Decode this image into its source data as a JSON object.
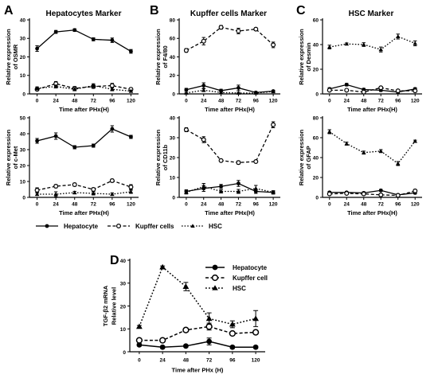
{
  "figure": {
    "legend_top": [
      "Hepatocyte",
      "Kupffer cells",
      "HSC"
    ],
    "legend_d": [
      "Hepatocyte",
      "Kupffer cell",
      "HSC"
    ]
  },
  "chart_data": [
    {
      "id": "A_top",
      "letter": "A",
      "title": "Hepatocytes Marker",
      "type": "line",
      "x": [
        0,
        24,
        48,
        72,
        96,
        120
      ],
      "xlabel": "Time after PHx(H)",
      "ylabel": [
        "Relative expression",
        "of OSMR"
      ],
      "ylim": [
        0,
        40
      ],
      "yticks": [
        0,
        10,
        20,
        30,
        40
      ],
      "series": [
        {
          "name": "Hepatocyte",
          "values": [
            24.5,
            33.5,
            34.5,
            29.5,
            29.0,
            23.0
          ],
          "err": [
            1.5,
            0.8,
            0.7,
            0.8,
            1.2,
            1.0
          ]
        },
        {
          "name": "Kupffer cells",
          "values": [
            2.5,
            5.5,
            3.0,
            4.0,
            4.5,
            2.5
          ],
          "err": [
            0.8,
            1.2,
            1.0,
            1.0,
            1.2,
            0.8
          ]
        },
        {
          "name": "HSC",
          "values": [
            3.0,
            4.0,
            2.5,
            4.5,
            2.5,
            1.5
          ],
          "err": [
            0.8,
            0.8,
            0.8,
            1.0,
            0.8,
            0.5
          ]
        }
      ]
    },
    {
      "id": "B_top",
      "letter": "B",
      "title": "Kupffer cells Marker",
      "type": "line",
      "x": [
        0,
        24,
        48,
        72,
        96,
        120
      ],
      "xlabel": "Time after PHx(H)",
      "ylabel": [
        "Relative expression",
        "of F4/80"
      ],
      "ylim": [
        0,
        80
      ],
      "yticks": [
        0,
        20,
        40,
        60,
        80
      ],
      "series": [
        {
          "name": "Hepatocyte",
          "values": [
            4.5,
            9.0,
            3.5,
            6.5,
            1.5,
            3.0
          ],
          "err": [
            1.5,
            3.0,
            1.5,
            3.0,
            1.0,
            1.0
          ]
        },
        {
          "name": "Kupffer cells",
          "values": [
            47.0,
            57.0,
            72.0,
            68.0,
            70.0,
            53.0
          ],
          "err": [
            2.0,
            4.0,
            2.0,
            3.0,
            1.5,
            3.0
          ]
        },
        {
          "name": "HSC",
          "values": [
            1.0,
            4.0,
            1.5,
            1.0,
            1.0,
            2.5
          ],
          "err": [
            0.5,
            1.5,
            0.8,
            0.5,
            0.5,
            0.8
          ]
        }
      ]
    },
    {
      "id": "C_top",
      "letter": "C",
      "title": "HSC Marker",
      "type": "line",
      "x": [
        0,
        24,
        48,
        72,
        96,
        120
      ],
      "xlabel": "Time after PHx(H)",
      "ylabel": [
        "Relative expression",
        "of Desmin"
      ],
      "ylim": [
        0,
        60
      ],
      "yticks": [
        0,
        20,
        40,
        60
      ],
      "series": [
        {
          "name": "Hepatocyte",
          "values": [
            4.0,
            7.5,
            3.5,
            3.0,
            1.5,
            4.0
          ],
          "err": [
            1.0,
            1.0,
            1.0,
            1.0,
            1.0,
            1.0
          ]
        },
        {
          "name": "Kupffer cells",
          "values": [
            3.0,
            3.0,
            1.5,
            5.0,
            2.5,
            2.5
          ],
          "err": [
            1.0,
            1.0,
            0.8,
            1.0,
            1.0,
            1.0
          ]
        },
        {
          "name": "HSC",
          "values": [
            38.0,
            40.5,
            40.0,
            36.0,
            46.5,
            41.0
          ],
          "err": [
            1.5,
            0.8,
            1.5,
            2.0,
            2.0,
            2.0
          ]
        }
      ]
    },
    {
      "id": "A_bottom",
      "type": "line",
      "x": [
        0,
        24,
        48,
        72,
        96,
        120
      ],
      "xlabel": "Time after PHx(H)",
      "ylabel": [
        "Relative expression",
        "of c-Met"
      ],
      "ylim": [
        0,
        50
      ],
      "yticks": [
        0,
        10,
        20,
        30,
        40,
        50
      ],
      "series": [
        {
          "name": "Hepatocyte",
          "values": [
            35.5,
            38.5,
            31.5,
            32.5,
            43.0,
            38.0
          ],
          "err": [
            1.5,
            2.0,
            1.0,
            1.0,
            2.0,
            1.0
          ]
        },
        {
          "name": "Kupffer cells",
          "values": [
            4.5,
            7.0,
            8.0,
            5.0,
            10.5,
            6.5
          ],
          "err": [
            1.5,
            1.0,
            1.0,
            1.0,
            1.0,
            1.5
          ]
        },
        {
          "name": "HSC",
          "values": [
            2.0,
            2.0,
            3.0,
            2.5,
            2.0,
            3.5
          ],
          "err": [
            0.8,
            1.5,
            0.8,
            1.0,
            0.8,
            1.0
          ]
        }
      ]
    },
    {
      "id": "B_bottom",
      "type": "line",
      "x": [
        0,
        24,
        48,
        72,
        96,
        120
      ],
      "xlabel": "Time after PHx(H)",
      "ylabel": [
        "Relative expression",
        "of CD11b"
      ],
      "ylim": [
        0,
        40
      ],
      "yticks": [
        0,
        10,
        20,
        30,
        40
      ],
      "series": [
        {
          "name": "Hepatocyte",
          "values": [
            3.0,
            4.5,
            5.5,
            7.0,
            3.0,
            2.5
          ],
          "err": [
            0.8,
            1.5,
            1.0,
            1.5,
            1.0,
            0.8
          ]
        },
        {
          "name": "Kupffer cells",
          "values": [
            34.0,
            29.0,
            18.5,
            17.5,
            18.0,
            36.5
          ],
          "err": [
            1.0,
            1.5,
            0.5,
            0.8,
            0.5,
            1.5
          ]
        },
        {
          "name": "HSC",
          "values": [
            2.5,
            5.5,
            3.0,
            3.0,
            4.5,
            2.5
          ],
          "err": [
            0.8,
            1.5,
            0.8,
            1.0,
            1.5,
            0.8
          ]
        }
      ]
    },
    {
      "id": "C_bottom",
      "type": "line",
      "x": [
        0,
        24,
        48,
        72,
        96,
        120
      ],
      "xlabel": "Time after PHx(H)",
      "ylabel": [
        "Relative expression",
        "of GFAP"
      ],
      "ylim": [
        0,
        80
      ],
      "yticks": [
        0,
        20,
        40,
        60,
        80
      ],
      "series": [
        {
          "name": "Hepatocyte",
          "values": [
            5.0,
            5.0,
            4.5,
            7.0,
            2.5,
            4.5
          ],
          "err": [
            1.0,
            1.0,
            1.0,
            1.0,
            1.0,
            1.0
          ]
        },
        {
          "name": "Kupffer cells",
          "values": [
            3.5,
            4.0,
            3.5,
            2.5,
            2.0,
            6.5
          ],
          "err": [
            1.0,
            1.0,
            1.0,
            1.0,
            1.0,
            1.5
          ]
        },
        {
          "name": "HSC",
          "values": [
            66.0,
            54.0,
            45.0,
            46.5,
            34.0,
            56.5
          ],
          "err": [
            2.0,
            1.5,
            1.5,
            1.5,
            2.0,
            1.0
          ]
        }
      ]
    },
    {
      "id": "D",
      "letter": "D",
      "type": "line",
      "x": [
        0,
        24,
        48,
        72,
        96,
        120
      ],
      "xlabel": "Time after PHx (H)",
      "ylabel": [
        "TGF-β2 mRNA",
        "Relative level"
      ],
      "ylim": [
        0,
        40
      ],
      "yticks": [
        0,
        10,
        20,
        30,
        40
      ],
      "series": [
        {
          "name": "Hepatocyte",
          "values": [
            3.0,
            2.0,
            2.5,
            4.5,
            2.0,
            2.0
          ],
          "err": [
            0.5,
            0.5,
            0.5,
            1.5,
            0.5,
            0.5
          ]
        },
        {
          "name": "Kupffer cell",
          "values": [
            5.0,
            5.0,
            9.5,
            11.0,
            8.0,
            8.5
          ],
          "err": [
            0.5,
            0.5,
            0.8,
            1.5,
            0.8,
            0.8
          ]
        },
        {
          "name": "HSC",
          "values": [
            11.0,
            37.0,
            28.5,
            14.5,
            12.0,
            14.5
          ],
          "err": [
            0.5,
            0.5,
            1.8,
            2.5,
            1.5,
            3.5
          ]
        }
      ]
    }
  ]
}
